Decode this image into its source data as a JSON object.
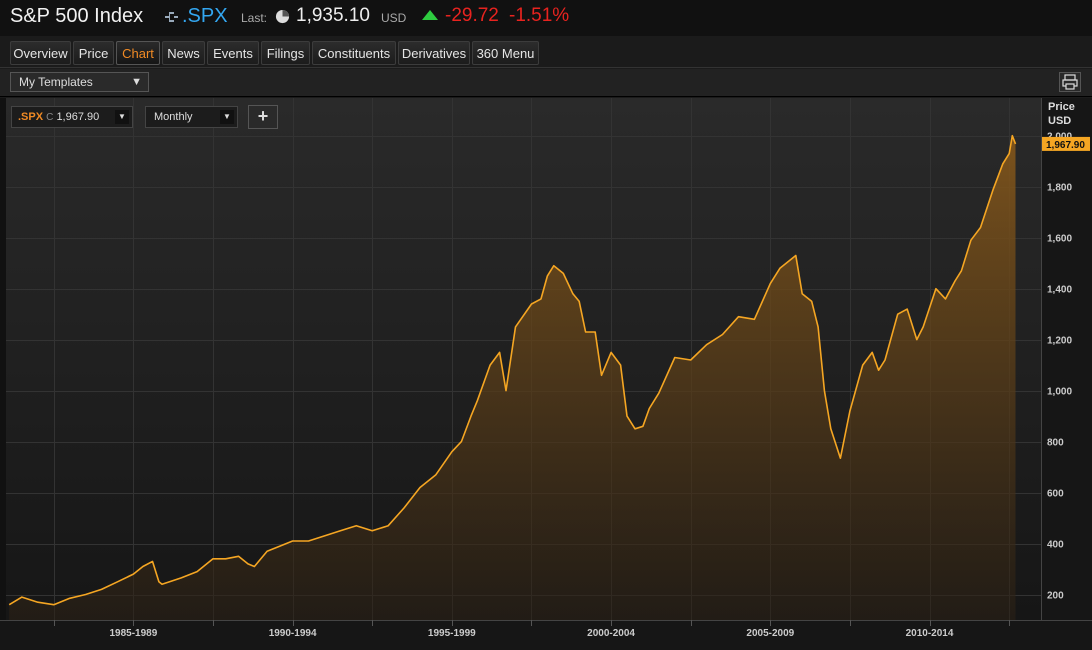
{
  "header": {
    "title": "S&P 500 Index",
    "ric": ".SPX",
    "last_label": "Last:",
    "last_price": "1,935.10",
    "currency": "USD",
    "change": "-29.72",
    "change_pct": "-1.51%",
    "colors": {
      "ric": "#33a6f0",
      "down": "#e8231f",
      "up_arrow": "#2ecc40"
    }
  },
  "tabs": [
    {
      "label": "Overview"
    },
    {
      "label": "Price"
    },
    {
      "label": "Chart",
      "active": true
    },
    {
      "label": "News"
    },
    {
      "label": "Events"
    },
    {
      "label": "Filings"
    },
    {
      "label": "Constituents"
    },
    {
      "label": "Derivatives"
    },
    {
      "label": "360 Menu"
    }
  ],
  "toolbar": {
    "templates_label": "My Templates",
    "print_icon": "printer-icon"
  },
  "chart_controls": {
    "symbol": ".SPX",
    "close_marker": "C",
    "close_value": "1,967.90",
    "period": "Monthly",
    "add_label": "+"
  },
  "chart_data": {
    "type": "area",
    "title": "",
    "ylabel": "Price USD",
    "ylabel_lines": [
      "Price",
      "USD"
    ],
    "ylim": [
      100,
      2050
    ],
    "yticks": [
      200,
      400,
      600,
      800,
      1000,
      1200,
      1400,
      1600,
      1800,
      2000
    ],
    "ytick_labels": [
      "200",
      "400",
      "600",
      "800",
      "1,000",
      "1,200",
      "1,400",
      "1,600",
      "1,800",
      "2,000"
    ],
    "xlim": [
      1983.0,
      2015.5
    ],
    "xtick_labels": [
      {
        "label": "1985-1989",
        "at": 1987.0
      },
      {
        "label": "1990-1994",
        "at": 1992.0
      },
      {
        "label": "1995-1999",
        "at": 1997.0
      },
      {
        "label": "2000-2004",
        "at": 2002.0
      },
      {
        "label": "2005-2009",
        "at": 2007.0
      },
      {
        "label": "2010-2014",
        "at": 2012.0
      }
    ],
    "last_value_label": "1,967.90",
    "line_color": "#f5a623",
    "grid": true,
    "series": [
      {
        "x": [
          1983.1,
          1983.5,
          1984.0,
          1984.5,
          1985.0,
          1985.5,
          1986.0,
          1986.5,
          1987.0,
          1987.3,
          1987.6,
          1987.8,
          1987.9,
          1988.5,
          1989.0,
          1989.5,
          1989.9,
          1990.3,
          1990.6,
          1990.8,
          1991.2,
          1991.6,
          1992.0,
          1992.5,
          1993.0,
          1993.5,
          1994.0,
          1994.5,
          1995.0,
          1995.5,
          1996.0,
          1996.5,
          1997.0,
          1997.3,
          1997.6,
          1997.8,
          1998.2,
          1998.5,
          1998.7,
          1999.0,
          1999.5,
          1999.8,
          2000.0,
          2000.2,
          2000.5,
          2000.8,
          2001.0,
          2001.2,
          2001.5,
          2001.7,
          2002.0,
          2002.3,
          2002.5,
          2002.75,
          2003.0,
          2003.2,
          2003.5,
          2004.0,
          2004.5,
          2005.0,
          2005.5,
          2006.0,
          2006.5,
          2007.0,
          2007.3,
          2007.6,
          2007.8,
          2008.0,
          2008.3,
          2008.5,
          2008.7,
          2008.9,
          2009.2,
          2009.5,
          2009.9,
          2010.2,
          2010.4,
          2010.6,
          2011.0,
          2011.3,
          2011.6,
          2011.8,
          2012.2,
          2012.5,
          2012.8,
          2013.0,
          2013.3,
          2013.6,
          2014.0,
          2014.3,
          2014.5,
          2014.6,
          2014.7
        ],
        "y": [
          160,
          190,
          170,
          160,
          185,
          200,
          220,
          250,
          280,
          310,
          330,
          250,
          240,
          265,
          290,
          340,
          340,
          350,
          320,
          310,
          370,
          390,
          410,
          410,
          430,
          450,
          470,
          450,
          470,
          540,
          620,
          670,
          760,
          800,
          900,
          960,
          1100,
          1150,
          1000,
          1250,
          1340,
          1360,
          1450,
          1490,
          1460,
          1380,
          1350,
          1230,
          1230,
          1060,
          1150,
          1100,
          900,
          850,
          860,
          930,
          990,
          1130,
          1120,
          1180,
          1220,
          1290,
          1280,
          1420,
          1480,
          1510,
          1530,
          1380,
          1350,
          1250,
          1000,
          850,
          735,
          920,
          1100,
          1150,
          1080,
          1120,
          1300,
          1320,
          1200,
          1250,
          1400,
          1360,
          1430,
          1470,
          1590,
          1640,
          1790,
          1890,
          1930,
          2000,
          1968
        ]
      }
    ]
  }
}
